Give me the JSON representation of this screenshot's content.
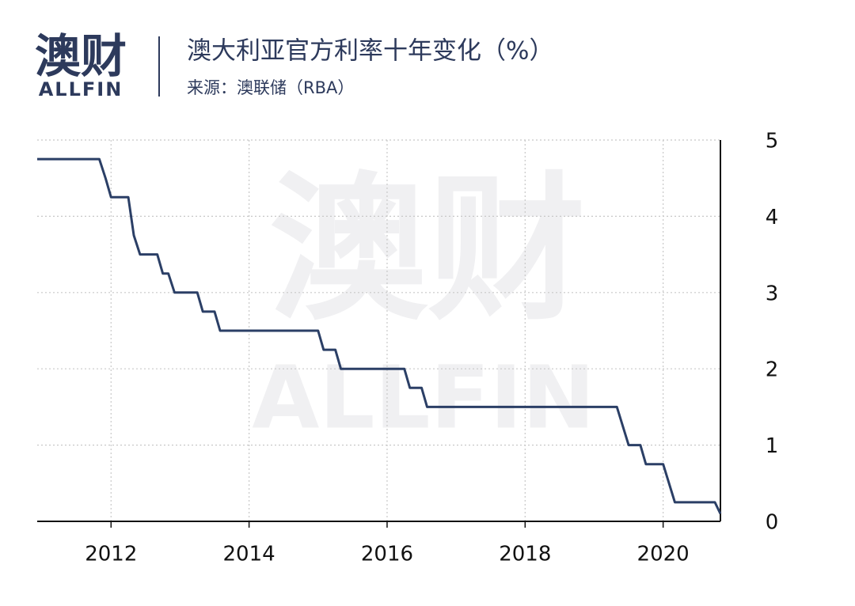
{
  "logo": {
    "cn": "澳财",
    "en": "ALLFIN"
  },
  "watermark": {
    "cn": "澳财",
    "en": "ALLFIN"
  },
  "chart_data": {
    "type": "line",
    "title": "澳大利亚官方利率十年变化（%）",
    "subtitle": "来源：澳联储（RBA）",
    "color": "#2b3f66",
    "x": [
      2010.93,
      2011.83,
      2011.92,
      2012.0,
      2012.25,
      2012.33,
      2012.42,
      2012.67,
      2012.75,
      2012.83,
      2012.92,
      2013.25,
      2013.33,
      2013.5,
      2013.58,
      2015.0,
      2015.08,
      2015.25,
      2015.33,
      2016.25,
      2016.33,
      2016.5,
      2016.58,
      2019.33,
      2019.5,
      2019.67,
      2019.75,
      2020.0,
      2020.17,
      2020.75,
      2020.83
    ],
    "values": [
      4.75,
      4.75,
      4.5,
      4.25,
      4.25,
      3.75,
      3.5,
      3.5,
      3.25,
      3.25,
      3.0,
      3.0,
      2.75,
      2.75,
      2.5,
      2.5,
      2.25,
      2.25,
      2.0,
      2.0,
      1.75,
      1.75,
      1.5,
      1.5,
      1.0,
      1.0,
      0.75,
      0.75,
      0.25,
      0.25,
      0.1
    ],
    "xlim": [
      2010.93,
      2020.83
    ],
    "xticks": [
      2012,
      2014,
      2016,
      2018,
      2020
    ],
    "ylim": [
      0,
      5
    ],
    "yticks": [
      0,
      1,
      2,
      3,
      4,
      5
    ],
    "grid": true
  }
}
